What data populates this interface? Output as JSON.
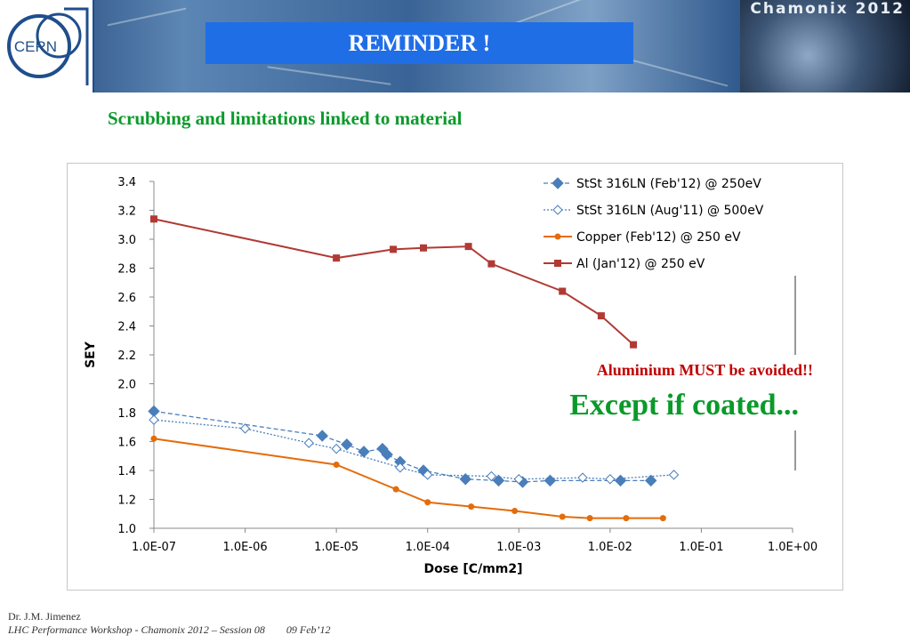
{
  "header": {
    "title": "REMINDER !",
    "logo_text": "CERN",
    "event_label": "Chamonix 2012"
  },
  "subtitle": "Scrubbing and limitations linked to material",
  "chart_data": {
    "type": "line",
    "xscale": "log",
    "xlim": [
      1e-07,
      1
    ],
    "ylim": [
      1.0,
      3.4
    ],
    "xlabel": "Dose [C/mm2]",
    "ylabel": "SEY",
    "xticks": [
      "1.0E-07",
      "1.0E-06",
      "1.0E-05",
      "1.0E-04",
      "1.0E-03",
      "1.0E-02",
      "1.0E-01",
      "1.0E+00"
    ],
    "yticks": [
      "1.0",
      "1.2",
      "1.4",
      "1.6",
      "1.8",
      "2.0",
      "2.2",
      "2.4",
      "2.6",
      "2.8",
      "3.0",
      "3.2",
      "3.4"
    ],
    "grid": false,
    "legend_position": "top-right",
    "series": [
      {
        "name": "StSt 316LN (Feb'12) @ 250eV",
        "color": "#4a7ebb",
        "marker": "diamond-filled",
        "line": "dashed",
        "points": [
          [
            1e-07,
            1.81
          ],
          [
            7e-06,
            1.64
          ],
          [
            1.3e-05,
            1.58
          ],
          [
            2e-05,
            1.53
          ],
          [
            3.2e-05,
            1.55
          ],
          [
            3.6e-05,
            1.51
          ],
          [
            5e-05,
            1.46
          ],
          [
            9e-05,
            1.4
          ],
          [
            0.00026,
            1.34
          ],
          [
            0.0006,
            1.33
          ],
          [
            0.0011,
            1.32
          ],
          [
            0.0022,
            1.33
          ],
          [
            0.013,
            1.33
          ],
          [
            0.028,
            1.33
          ]
        ]
      },
      {
        "name": "StSt 316LN (Aug'11) @ 500eV",
        "color": "#4a7ebb",
        "marker": "diamond-open",
        "line": "dotted",
        "points": [
          [
            1e-07,
            1.75
          ],
          [
            1e-06,
            1.69
          ],
          [
            5e-06,
            1.59
          ],
          [
            1e-05,
            1.55
          ],
          [
            5e-05,
            1.42
          ],
          [
            0.0001,
            1.37
          ],
          [
            0.0005,
            1.36
          ],
          [
            0.001,
            1.34
          ],
          [
            0.005,
            1.35
          ],
          [
            0.01,
            1.34
          ],
          [
            0.05,
            1.37
          ]
        ]
      },
      {
        "name": "Copper (Feb'12) @ 250 eV",
        "color": "#e46c0a",
        "marker": "circle",
        "line": "solid",
        "points": [
          [
            1e-07,
            1.62
          ],
          [
            1e-05,
            1.44
          ],
          [
            4.5e-05,
            1.27
          ],
          [
            0.0001,
            1.18
          ],
          [
            0.0003,
            1.15
          ],
          [
            0.0009,
            1.12
          ],
          [
            0.003,
            1.08
          ],
          [
            0.006,
            1.07
          ],
          [
            0.015,
            1.07
          ],
          [
            0.038,
            1.07
          ]
        ]
      },
      {
        "name": "Al (Jan'12) @ 250 eV",
        "color": "#b03a34",
        "marker": "square",
        "line": "solid",
        "points": [
          [
            1e-07,
            3.14
          ],
          [
            1e-05,
            2.87
          ],
          [
            4.2e-05,
            2.93
          ],
          [
            9e-05,
            2.94
          ],
          [
            0.00028,
            2.95
          ],
          [
            0.0005,
            2.83
          ],
          [
            0.003,
            2.64
          ],
          [
            0.008,
            2.47
          ],
          [
            0.018,
            2.27
          ]
        ]
      }
    ],
    "annotations": [
      {
        "text": "Aluminium MUST be avoided!!",
        "color": "#c00000"
      },
      {
        "text": "Except if coated...",
        "color": "#0a9a2a"
      }
    ]
  },
  "footer": {
    "author": "Dr. J.M. Jimenez",
    "event": "LHC Performance Workshop - Chamonix 2012 – Session 08",
    "date": "09 Feb’12"
  }
}
